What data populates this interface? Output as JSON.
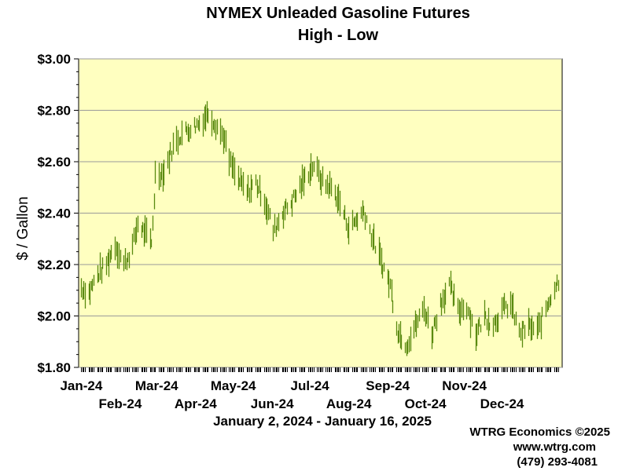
{
  "chart_data": {
    "type": "high-low",
    "title": "NYMEX Unleaded Gasoline Futures",
    "subtitle": "High - Low",
    "ylabel": "$ / Gallon",
    "date_range": "January 2, 2024 - January 16, 2025",
    "ylim": [
      1.8,
      3.0
    ],
    "yticks": [
      "$1.80",
      "$2.00",
      "$2.20",
      "$2.40",
      "$2.60",
      "$2.80",
      "$3.00"
    ],
    "ytick_values": [
      1.8,
      2.0,
      2.2,
      2.4,
      2.6,
      2.8,
      3.0
    ],
    "x_months_upper": [
      "Jan-24",
      "Mar-24",
      "May-24",
      "Jul-24",
      "Sep-24",
      "Nov-24"
    ],
    "x_months_lower": [
      "Feb-24",
      "Apr-24",
      "Jun-24",
      "Aug-24",
      "Oct-24",
      "Dec-24"
    ],
    "grid": true,
    "plot_background": "#ffffc0",
    "bar_color": "#5a8a10",
    "anchors": [
      [
        "2024-01-02",
        2.11
      ],
      [
        "2024-01-08",
        2.09
      ],
      [
        "2024-01-15",
        2.16
      ],
      [
        "2024-01-22",
        2.2
      ],
      [
        "2024-01-29",
        2.28
      ],
      [
        "2024-02-05",
        2.2
      ],
      [
        "2024-02-12",
        2.27
      ],
      [
        "2024-02-16",
        2.36
      ],
      [
        "2024-02-22",
        2.32
      ],
      [
        "2024-02-27",
        2.28
      ],
      [
        "2024-03-01",
        2.55
      ],
      [
        "2024-03-08",
        2.56
      ],
      [
        "2024-03-15",
        2.66
      ],
      [
        "2024-03-22",
        2.71
      ],
      [
        "2024-03-29",
        2.73
      ],
      [
        "2024-04-05",
        2.75
      ],
      [
        "2024-04-12",
        2.79
      ],
      [
        "2024-04-15",
        2.77
      ],
      [
        "2024-04-24",
        2.7
      ],
      [
        "2024-04-29",
        2.6
      ],
      [
        "2024-05-06",
        2.53
      ],
      [
        "2024-05-13",
        2.48
      ],
      [
        "2024-05-20",
        2.52
      ],
      [
        "2024-05-27",
        2.45
      ],
      [
        "2024-06-03",
        2.33
      ],
      [
        "2024-06-10",
        2.4
      ],
      [
        "2024-06-17",
        2.44
      ],
      [
        "2024-06-24",
        2.5
      ],
      [
        "2024-07-01",
        2.56
      ],
      [
        "2024-07-05",
        2.59
      ],
      [
        "2024-07-12",
        2.52
      ],
      [
        "2024-07-19",
        2.5
      ],
      [
        "2024-07-26",
        2.44
      ],
      [
        "2024-08-02",
        2.34
      ],
      [
        "2024-08-09",
        2.38
      ],
      [
        "2024-08-14",
        2.41
      ],
      [
        "2024-08-21",
        2.3
      ],
      [
        "2024-08-28",
        2.21
      ],
      [
        "2024-09-04",
        2.12
      ],
      [
        "2024-09-10",
        1.94
      ],
      [
        "2024-09-17",
        1.89
      ],
      [
        "2024-09-24",
        1.96
      ],
      [
        "2024-10-01",
        2.03
      ],
      [
        "2024-10-07",
        1.93
      ],
      [
        "2024-10-14",
        2.05
      ],
      [
        "2024-10-21",
        2.12
      ],
      [
        "2024-10-28",
        2.02
      ],
      [
        "2024-11-04",
        2.04
      ],
      [
        "2024-11-11",
        1.93
      ],
      [
        "2024-11-18",
        2.0
      ],
      [
        "2024-11-25",
        1.97
      ],
      [
        "2024-12-02",
        2.02
      ],
      [
        "2024-12-09",
        2.05
      ],
      [
        "2024-12-16",
        1.93
      ],
      [
        "2024-12-23",
        1.96
      ],
      [
        "2024-12-30",
        1.94
      ],
      [
        "2025-01-06",
        2.03
      ],
      [
        "2025-01-10",
        2.08
      ],
      [
        "2025-01-16",
        2.14
      ]
    ]
  },
  "credit": {
    "company": "WTRG Economics ©2025",
    "website": "www.wtrg.com",
    "phone": "(479) 293-4081"
  }
}
